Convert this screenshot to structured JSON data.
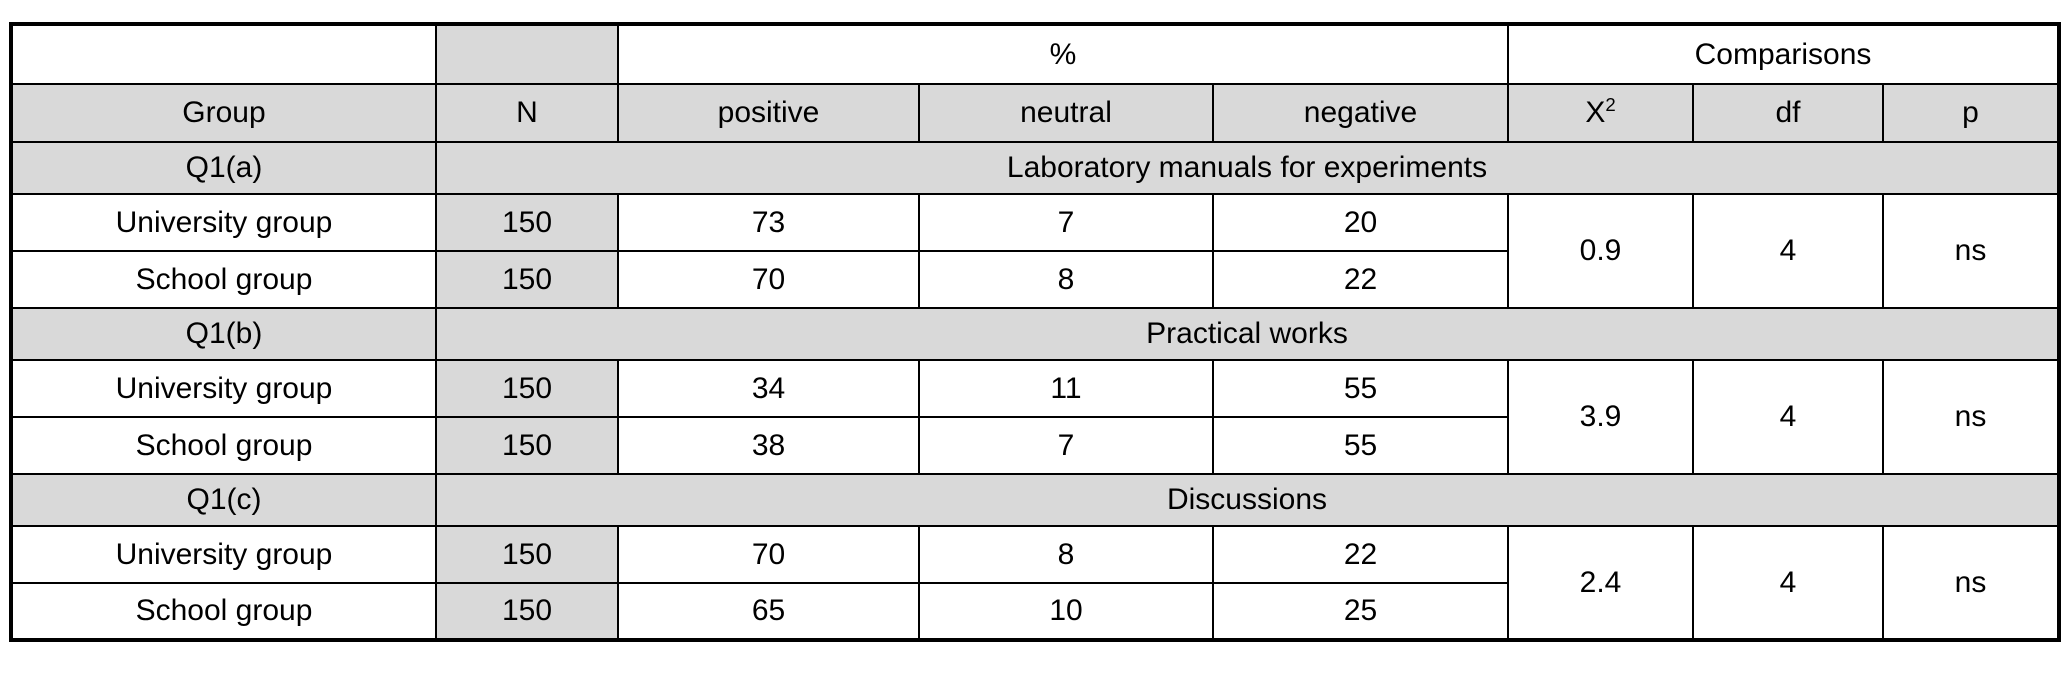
{
  "header": {
    "percent_label": "%",
    "comparisons_label": "Comparisons",
    "columns": {
      "group": "Group",
      "n": "N",
      "positive": "positive",
      "neutral": "neutral",
      "negative": "negative",
      "chi_base": "X",
      "chi_sup": "2",
      "df": "df",
      "p": "p"
    }
  },
  "sections": [
    {
      "id": "Q1(a)",
      "title": "Laboratory manuals for experiments",
      "rows": [
        {
          "group": "University group",
          "n": "150",
          "positive": "73",
          "neutral": "7",
          "negative": "20"
        },
        {
          "group": "School group",
          "n": "150",
          "positive": "70",
          "neutral": "8",
          "negative": "22"
        }
      ],
      "chi_square": "0.9",
      "df": "4",
      "p": "ns"
    },
    {
      "id": "Q1(b)",
      "title": "Practical works",
      "rows": [
        {
          "group": "University group",
          "n": "150",
          "positive": "34",
          "neutral": "11",
          "negative": "55"
        },
        {
          "group": "School group",
          "n": "150",
          "positive": "38",
          "neutral": "7",
          "negative": "55"
        }
      ],
      "chi_square": "3.9",
      "df": "4",
      "p": "ns"
    },
    {
      "id": "Q1(c)",
      "title": "Discussions",
      "rows": [
        {
          "group": "University group",
          "n": "150",
          "positive": "70",
          "neutral": "8",
          "negative": "22"
        },
        {
          "group": "School group",
          "n": "150",
          "positive": "65",
          "neutral": "10",
          "negative": "25"
        }
      ],
      "chi_square": "2.4",
      "df": "4",
      "p": "ns"
    }
  ],
  "colors": {
    "header_fill": "#d9d9d9",
    "border": "#000000",
    "background": "#ffffff"
  }
}
